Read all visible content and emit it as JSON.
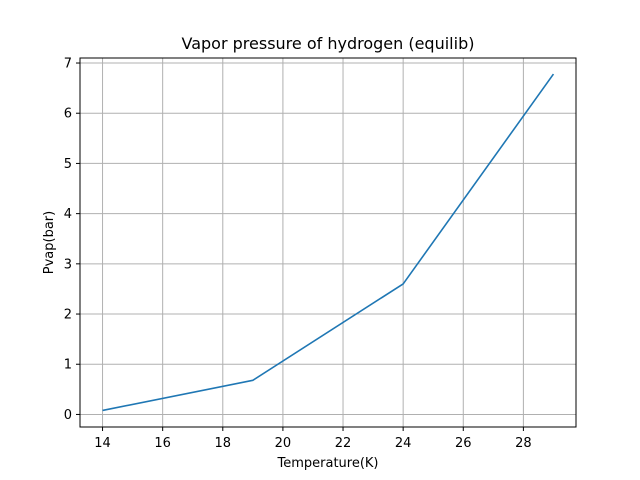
{
  "chart_data": {
    "type": "line",
    "title": "Vapor pressure of hydrogen (equilib)",
    "xlabel": "Temperature(K)",
    "ylabel": "Pvap(bar)",
    "xlim": [
      13.25,
      29.75
    ],
    "ylim": [
      -0.25,
      7.1
    ],
    "xticks": [
      14,
      16,
      18,
      20,
      22,
      24,
      26,
      28
    ],
    "yticks": [
      0,
      1,
      2,
      3,
      4,
      5,
      6,
      7
    ],
    "grid": true,
    "series": [
      {
        "color": "#1f77b4",
        "x": [
          14,
          19,
          24,
          29
        ],
        "y": [
          0.08,
          0.68,
          2.6,
          6.78
        ]
      }
    ]
  }
}
